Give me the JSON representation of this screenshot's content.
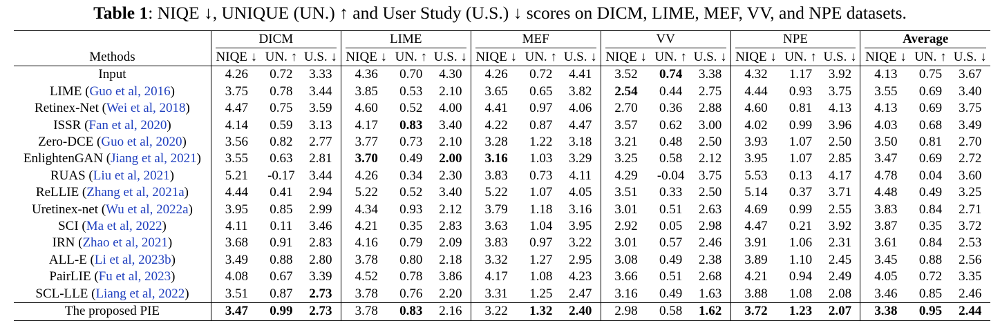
{
  "caption": {
    "label": "Table 1",
    "text": ": NIQE ↓, UNIQUE (UN.) ↑ and User Study (U.S.) ↓ scores on DICM, LIME, MEF, VV, and NPE datasets."
  },
  "table": {
    "methods_header": "Methods",
    "groups": [
      "DICM",
      "LIME",
      "MEF",
      "VV",
      "NPE",
      "Average"
    ],
    "metrics": [
      "NIQE ↓",
      "UN. ↑",
      "U.S. ↓"
    ],
    "rows": [
      {
        "name": "Input",
        "cite": "",
        "values": [
          "4.26",
          "0.72",
          "3.33",
          "4.36",
          "0.70",
          "4.30",
          "4.26",
          "0.72",
          "4.41",
          "3.52",
          "0.74",
          "3.38",
          "4.32",
          "1.17",
          "3.92",
          "4.13",
          "0.75",
          "3.67"
        ],
        "bold": [
          10
        ]
      },
      {
        "name": "LIME (",
        "cite": "Guo et al, 2016",
        "close": ")",
        "values": [
          "3.75",
          "0.78",
          "3.44",
          "3.85",
          "0.53",
          "2.10",
          "3.65",
          "0.65",
          "3.82",
          "2.54",
          "0.44",
          "2.75",
          "4.44",
          "0.93",
          "3.75",
          "3.55",
          "0.69",
          "3.40"
        ],
        "bold": [
          9
        ]
      },
      {
        "name": "Retinex-Net (",
        "cite": "Wei et al, 2018",
        "close": ")",
        "values": [
          "4.47",
          "0.75",
          "3.59",
          "4.60",
          "0.52",
          "4.00",
          "4.41",
          "0.97",
          "4.06",
          "2.70",
          "0.36",
          "2.88",
          "4.60",
          "0.81",
          "4.13",
          "4.13",
          "0.69",
          "3.75"
        ],
        "bold": []
      },
      {
        "name": "ISSR (",
        "cite": "Fan et al, 2020",
        "close": ")",
        "values": [
          "4.14",
          "0.59",
          "3.13",
          "4.17",
          "0.83",
          "3.40",
          "4.22",
          "0.87",
          "4.47",
          "3.57",
          "0.62",
          "3.00",
          "4.02",
          "0.99",
          "3.96",
          "4.03",
          "0.68",
          "3.49"
        ],
        "bold": [
          4
        ]
      },
      {
        "name": "Zero-DCE (",
        "cite": "Guo et al, 2020",
        "close": ")",
        "values": [
          "3.56",
          "0.82",
          "2.77",
          "3.77",
          "0.73",
          "2.10",
          "3.28",
          "1.22",
          "3.18",
          "3.21",
          "0.48",
          "2.50",
          "3.93",
          "1.07",
          "2.50",
          "3.50",
          "0.81",
          "2.70"
        ],
        "bold": []
      },
      {
        "name": "EnlightenGAN (",
        "cite": "Jiang et al, 2021",
        "close": ")",
        "values": [
          "3.55",
          "0.63",
          "2.81",
          "3.70",
          "0.49",
          "2.00",
          "3.16",
          "1.03",
          "3.29",
          "3.25",
          "0.58",
          "2.12",
          "3.95",
          "1.07",
          "2.85",
          "3.47",
          "0.69",
          "2.72"
        ],
        "bold": [
          3,
          5,
          6
        ]
      },
      {
        "name": "RUAS (",
        "cite": "Liu et al, 2021",
        "close": ")",
        "values": [
          "5.21",
          "-0.17",
          "3.44",
          "4.26",
          "0.34",
          "2.30",
          "3.83",
          "0.73",
          "4.11",
          "4.29",
          "-0.04",
          "3.75",
          "5.53",
          "0.13",
          "4.17",
          "4.78",
          "0.04",
          "3.60"
        ],
        "bold": []
      },
      {
        "name": "ReLLIE (",
        "cite": "Zhang et al, 2021a",
        "close": ")",
        "values": [
          "4.44",
          "0.41",
          "2.94",
          "5.22",
          "0.52",
          "3.40",
          "5.22",
          "1.07",
          "4.05",
          "3.51",
          "0.33",
          "2.50",
          "5.14",
          "0.37",
          "3.71",
          "4.48",
          "0.49",
          "3.25"
        ],
        "bold": []
      },
      {
        "name": "Uretinex-net (",
        "cite": "Wu et al, 2022a",
        "close": ")",
        "values": [
          "3.95",
          "0.85",
          "2.99",
          "4.34",
          "0.93",
          "2.12",
          "3.79",
          "1.18",
          "3.16",
          "3.01",
          "0.51",
          "2.63",
          "4.69",
          "0.99",
          "2.55",
          "3.83",
          "0.84",
          "2.71"
        ],
        "bold": []
      },
      {
        "name": "SCI (",
        "cite": "Ma et al, 2022",
        "close": ")",
        "values": [
          "4.11",
          "0.11",
          "3.46",
          "4.21",
          "0.35",
          "2.83",
          "3.63",
          "1.04",
          "3.95",
          "2.92",
          "0.05",
          "2.98",
          "4.47",
          "0.21",
          "3.92",
          "3.87",
          "0.35",
          "3.72"
        ],
        "bold": []
      },
      {
        "name": "IRN (",
        "cite": "Zhao et al, 2021",
        "close": ")",
        "values": [
          "3.68",
          "0.91",
          "2.83",
          "4.16",
          "0.79",
          "2.09",
          "3.83",
          "0.97",
          "3.22",
          "3.01",
          "0.57",
          "2.46",
          "3.91",
          "1.06",
          "2.31",
          "3.61",
          "0.84",
          "2.53"
        ],
        "bold": []
      },
      {
        "name": "ALL-E (",
        "cite": "Li et al, 2023b",
        "close": ")",
        "values": [
          "3.49",
          "0.88",
          "2.80",
          "3.78",
          "0.80",
          "2.18",
          "3.32",
          "1.27",
          "2.95",
          "3.08",
          "0.49",
          "2.38",
          "3.89",
          "1.10",
          "2.45",
          "3.45",
          "0.88",
          "2.56"
        ],
        "bold": []
      },
      {
        "name": "PairLIE (",
        "cite": "Fu et al, 2023",
        "close": ")",
        "values": [
          "4.08",
          "0.67",
          "3.39",
          "4.52",
          "0.78",
          "3.86",
          "4.17",
          "1.08",
          "4.23",
          "3.66",
          "0.51",
          "2.68",
          "4.21",
          "0.94",
          "2.49",
          "4.05",
          "0.72",
          "3.35"
        ],
        "bold": []
      },
      {
        "name": "SCL-LLE (",
        "cite": "Liang et al, 2022",
        "close": ")",
        "values": [
          "3.51",
          "0.87",
          "2.73",
          "3.78",
          "0.76",
          "2.20",
          "3.31",
          "1.25",
          "2.47",
          "3.16",
          "0.49",
          "1.63",
          "3.88",
          "1.08",
          "2.08",
          "3.46",
          "0.85",
          "2.46"
        ],
        "bold": [
          2
        ]
      },
      {
        "name": "The proposed PIE",
        "cite": "",
        "values": [
          "3.47",
          "0.99",
          "2.73",
          "3.78",
          "0.83",
          "2.16",
          "3.22",
          "1.32",
          "2.40",
          "2.98",
          "0.58",
          "1.62",
          "3.72",
          "1.23",
          "2.07",
          "3.38",
          "0.95",
          "2.44"
        ],
        "bold": [
          0,
          1,
          2,
          4,
          7,
          8,
          11,
          12,
          13,
          14,
          15,
          16,
          17
        ]
      }
    ]
  }
}
